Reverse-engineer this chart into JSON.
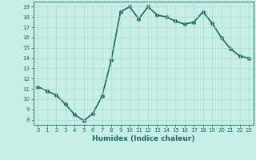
{
  "x": [
    0,
    1,
    2,
    3,
    4,
    5,
    6,
    7,
    8,
    9,
    10,
    11,
    12,
    13,
    14,
    15,
    16,
    17,
    18,
    19,
    20,
    21,
    22,
    23
  ],
  "y": [
    11.2,
    10.8,
    10.4,
    9.5,
    8.5,
    7.9,
    8.6,
    10.3,
    13.8,
    18.5,
    19.0,
    17.8,
    19.0,
    18.2,
    18.0,
    17.6,
    17.3,
    17.5,
    18.5,
    17.4,
    16.0,
    14.9,
    14.2,
    14.0
  ],
  "xlabel": "Humidex (Indice chaleur)",
  "line_color": "#1a6b5a",
  "marker_size": 2.5,
  "bg_color": "#c8eee8",
  "grid_color": "#aed8d0",
  "tick_color": "#1a6b5a",
  "label_color": "#1a6b5a",
  "xlim": [
    -0.5,
    23.5
  ],
  "ylim": [
    7.5,
    19.5
  ],
  "yticks": [
    8,
    9,
    10,
    11,
    12,
    13,
    14,
    15,
    16,
    17,
    18,
    19
  ],
  "xticks": [
    0,
    1,
    2,
    3,
    4,
    5,
    6,
    7,
    8,
    9,
    10,
    11,
    12,
    13,
    14,
    15,
    16,
    17,
    18,
    19,
    20,
    21,
    22,
    23
  ],
  "linewidth": 1.2
}
